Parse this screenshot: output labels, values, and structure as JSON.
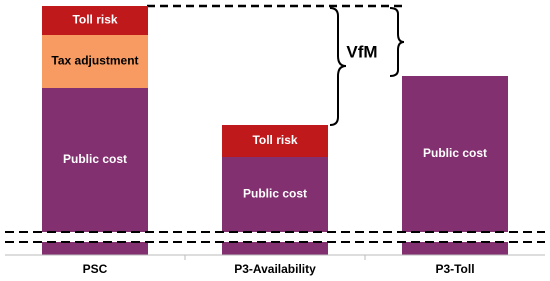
{
  "chart_data": {
    "type": "stacked-bar",
    "annotation": "VfM",
    "categories": [
      "PSC",
      "P3-Availability",
      "P3-Toll"
    ],
    "series": [
      {
        "name": "Public cost",
        "color": "#833070",
        "values": [
          167,
          98,
          179
        ]
      },
      {
        "name": "Tax adjustment",
        "color": "#f79b62",
        "values": [
          53,
          null,
          null
        ]
      },
      {
        "name": "Toll risk",
        "color": "#c0191c",
        "values": [
          29,
          32,
          null
        ]
      }
    ],
    "ylim": [
      0,
      250
    ]
  }
}
